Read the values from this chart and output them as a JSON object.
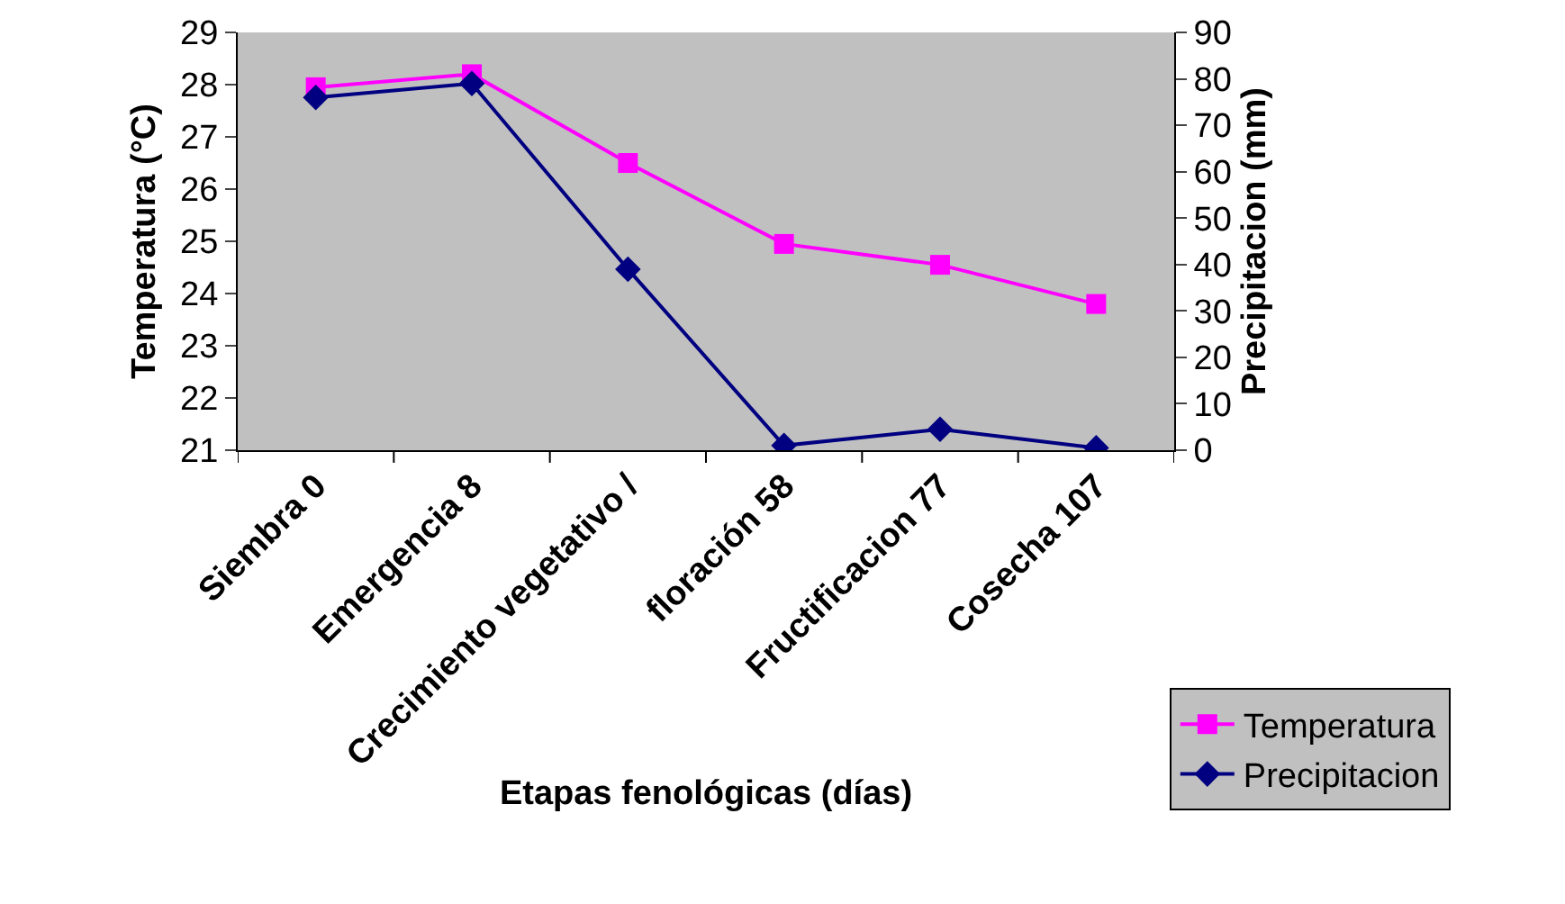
{
  "chart_data": {
    "type": "line",
    "xlabel": "Etapas fenológicas (días)",
    "ylabel": "Temperatura (°C)",
    "y2label": "Precipitacion (mm)",
    "categories": [
      "Siembra 0",
      "Emergencia 8",
      "Crecimiento vegetativo /",
      "floración 58",
      "Fructificacion 77",
      "Cosecha 107"
    ],
    "series": [
      {
        "name": "Temperatura",
        "color": "#ff00ff",
        "marker": "square",
        "values": [
          27.95,
          28.2,
          26.5,
          24.95,
          24.55,
          23.8
        ]
      },
      {
        "name": "Precipitacion",
        "color": "#000080",
        "marker": "diamond",
        "axis": "y2",
        "values": [
          76,
          79,
          39,
          1,
          4.5,
          0.5
        ]
      }
    ],
    "ylim": [
      21,
      29
    ],
    "yticks": [
      21,
      22,
      23,
      24,
      25,
      26,
      27,
      28,
      29
    ],
    "y2lim": [
      0,
      90
    ],
    "y2ticks": [
      0,
      10,
      20,
      30,
      40,
      50,
      60,
      70,
      80,
      90
    ],
    "grid": false,
    "legend": "bottom right"
  }
}
